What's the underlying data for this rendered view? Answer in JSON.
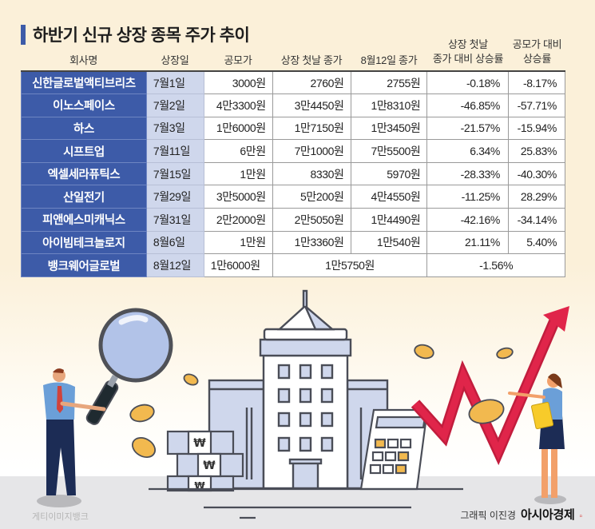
{
  "title": "하반기 신규 상장 종목 주가 추이",
  "columns": [
    {
      "key": "company",
      "label": "회사명"
    },
    {
      "key": "listing_date",
      "label": "상장일"
    },
    {
      "key": "ipo_price",
      "label": "공모가"
    },
    {
      "key": "first_day_close",
      "label": "상장 첫날 종가"
    },
    {
      "key": "aug12_close",
      "label": "8월12일 종가"
    },
    {
      "key": "rise_vs_first_day",
      "label_line1": "상장 첫날",
      "label_line2": "종가 대비 상승률"
    },
    {
      "key": "rise_vs_ipo",
      "label_line1": "공모가 대비",
      "label_line2": "상승률"
    }
  ],
  "rows": [
    {
      "company": "신한글로벌액티브리츠",
      "listing_date": "7월1일",
      "ipo_price": "3000원",
      "first_day_close": "2760원",
      "aug12_close": "2755원",
      "rise_vs_first_day": "-0.18%",
      "rise_vs_ipo": "-8.17%"
    },
    {
      "company": "이노스페이스",
      "listing_date": "7월2일",
      "ipo_price": "4만3300원",
      "first_day_close": "3만4450원",
      "aug12_close": "1만8310원",
      "rise_vs_first_day": "-46.85%",
      "rise_vs_ipo": "-57.71%"
    },
    {
      "company": "하스",
      "listing_date": "7월3일",
      "ipo_price": "1만6000원",
      "first_day_close": "1만7150원",
      "aug12_close": "1만3450원",
      "rise_vs_first_day": "-21.57%",
      "rise_vs_ipo": "-15.94%"
    },
    {
      "company": "시프트업",
      "listing_date": "7월11일",
      "ipo_price": "6만원",
      "first_day_close": "7만1000원",
      "aug12_close": "7만5500원",
      "rise_vs_first_day": "6.34%",
      "rise_vs_ipo": "25.83%"
    },
    {
      "company": "엑셀세라퓨틱스",
      "listing_date": "7월15일",
      "ipo_price": "1만원",
      "first_day_close": "8330원",
      "aug12_close": "5970원",
      "rise_vs_first_day": "-28.33%",
      "rise_vs_ipo": "-40.30%"
    },
    {
      "company": "산일전기",
      "listing_date": "7월29일",
      "ipo_price": "3만5000원",
      "first_day_close": "5만200원",
      "aug12_close": "4만4550원",
      "rise_vs_first_day": "-11.25%",
      "rise_vs_ipo": "28.29%"
    },
    {
      "company": "피앤에스미캐닉스",
      "listing_date": "7월31일",
      "ipo_price": "2만2000원",
      "first_day_close": "2만5050원",
      "aug12_close": "1만4490원",
      "rise_vs_first_day": "-42.16%",
      "rise_vs_ipo": "-34.14%"
    },
    {
      "company": "아이빔테크놀로지",
      "listing_date": "8월6일",
      "ipo_price": "1만원",
      "first_day_close": "1만3360원",
      "aug12_close": "1만540원",
      "rise_vs_first_day": "21.11%",
      "rise_vs_ipo": "5.40%"
    }
  ],
  "last_row": {
    "company": "뱅크웨어글로벌",
    "listing_date": "8월12일",
    "ipo_price": "1만6000원",
    "close_merged": "1만5750원",
    "rise_merged": "-1.56%"
  },
  "chart_data": {
    "type": "table",
    "title": "하반기 신규 상장 종목 주가 추이",
    "categories": [
      "신한글로벌액티브리츠",
      "이노스페이스",
      "하스",
      "시프트업",
      "엑셀세라퓨틱스",
      "산일전기",
      "피앤에스미캐닉스",
      "아이빔테크놀로지",
      "뱅크웨어글로벌"
    ],
    "listing_dates": [
      "7월1일",
      "7월2일",
      "7월3일",
      "7월11일",
      "7월15일",
      "7월29일",
      "7월31일",
      "8월6일",
      "8월12일"
    ],
    "series": [
      {
        "name": "공모가 (원)",
        "values": [
          3000,
          43300,
          16000,
          60000,
          10000,
          35000,
          22000,
          10000,
          16000
        ]
      },
      {
        "name": "상장 첫날 종가 (원)",
        "values": [
          2760,
          34450,
          17150,
          71000,
          8330,
          50200,
          25050,
          13360,
          15750
        ]
      },
      {
        "name": "8월12일 종가 (원)",
        "values": [
          2755,
          18310,
          13450,
          75500,
          5970,
          44550,
          14490,
          10540,
          15750
        ]
      },
      {
        "name": "상장 첫날 종가 대비 상승률 (%)",
        "values": [
          -0.18,
          -46.85,
          -21.57,
          6.34,
          -28.33,
          -11.25,
          -42.16,
          21.11,
          -1.56
        ]
      },
      {
        "name": "공모가 대비 상승률 (%)",
        "values": [
          -8.17,
          -57.71,
          -15.94,
          25.83,
          -40.3,
          28.29,
          -34.14,
          5.4,
          -1.56
        ]
      }
    ]
  },
  "colors": {
    "accent": "#3d5ba8",
    "date_col": "#cfd7ec",
    "background": "#fbf0d9",
    "arrow": "#e0254a",
    "coin": "#f2b94f"
  },
  "credits": {
    "left": "게티이미지뱅크",
    "right_prefix": "그래픽 이진경",
    "brand": "아시아경제"
  },
  "illustration": {
    "won_symbol": "₩"
  }
}
